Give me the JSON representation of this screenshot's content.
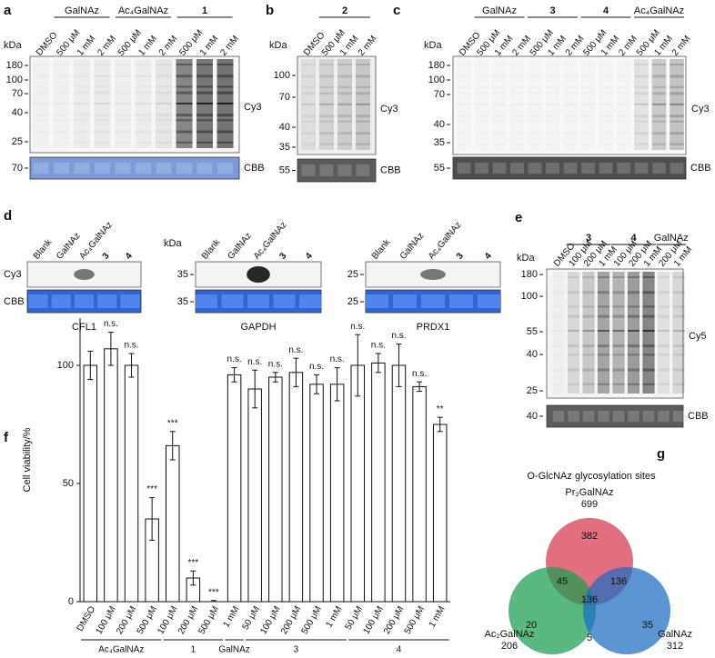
{
  "panels": {
    "a": {
      "label": "a",
      "groups": [
        "GalNAz",
        "Ac₄GalNAz",
        "1"
      ],
      "lanes": [
        "DMSO",
        "500 μM",
        "1 mM",
        "2 mM",
        "500 μM",
        "1 mM",
        "2 mM",
        "500 μM",
        "1 mM",
        "2 mM"
      ],
      "kda_label": "kDa",
      "markers": [
        180,
        100,
        70,
        40,
        25
      ],
      "signal": "Cy3",
      "loading_marker": 70,
      "loading": "CBB"
    },
    "b": {
      "label": "b",
      "groups": [
        "2"
      ],
      "lanes": [
        "DMSO",
        "500 μM",
        "1 mM",
        "2 mM"
      ],
      "kda_label": "kDa",
      "markers": [
        100,
        70,
        40,
        35
      ],
      "signal": "Cy3",
      "loading_marker": 55,
      "loading": "CBB"
    },
    "c": {
      "label": "c",
      "groups": [
        "GalNAz",
        "3",
        "4",
        "Ac₄GalNAz"
      ],
      "lanes": [
        "DMSO",
        "500 μM",
        "1 mM",
        "2 mM",
        "500 μM",
        "1 mM",
        "2 mM",
        "500 μM",
        "1 mM",
        "2 mM",
        "500 μM",
        "1 mM",
        "2 mM"
      ],
      "kda_label": "kDa",
      "markers": [
        180,
        100,
        70,
        40,
        35
      ],
      "signal": "Cy3",
      "loading_marker": 55,
      "loading": "CBB"
    },
    "d": {
      "label": "d",
      "rows": [
        "Cy3",
        "CBB"
      ],
      "blots": [
        {
          "lanes": [
            "Blank",
            "GalNAz",
            "Ac₄GalNAz",
            "3",
            "4"
          ],
          "protein": "CFL1"
        },
        {
          "lanes": [
            "Blank",
            "GalNAz",
            "Ac₄GalNAz",
            "3",
            "4"
          ],
          "protein": "GAPDH",
          "kda_label": "kDa",
          "markers": [
            35,
            35
          ]
        },
        {
          "lanes": [
            "Blank",
            "GalNAz",
            "Ac₄GalNAz",
            "3",
            "4"
          ],
          "protein": "PRDX1",
          "markers": [
            25,
            25
          ]
        }
      ]
    },
    "e": {
      "label": "e",
      "groups": [
        "3",
        "4",
        "GalNAz"
      ],
      "lanes": [
        "DMSO",
        "100 μM",
        "200 μM",
        "1 mM",
        "100 μM",
        "200 μM",
        "1 mM",
        "200 μM",
        "1 mM"
      ],
      "kda_label": "kDa",
      "markers": [
        180,
        100,
        55,
        40,
        25
      ],
      "signal": "Cy5",
      "loading_marker": 40,
      "loading": "CBB"
    }
  },
  "chart_data": {
    "type": "bar",
    "label": "f",
    "ylabel": "Cell viability/%",
    "categories": [
      "DMSO",
      "100 μM",
      "200 μM",
      "500 μM",
      "100 μM",
      "200 μM",
      "500 μM",
      "1 mM",
      "50 μM",
      "100 μM",
      "200 μM",
      "500 μM",
      "1 mM",
      "50 μM",
      "100 μM",
      "200 μM",
      "500 μM",
      "1 mM"
    ],
    "groups": [
      "Ac₄GalNAz",
      "1",
      "GalNAz",
      "3",
      "4"
    ],
    "values": [
      100,
      107,
      100,
      35,
      66,
      10,
      0,
      96,
      90,
      95,
      97,
      92,
      92,
      100,
      101,
      100,
      91,
      75
    ],
    "errors": [
      6,
      7,
      5,
      9,
      6,
      3,
      0.5,
      3,
      8,
      2,
      6,
      4,
      7,
      13,
      4,
      9,
      2,
      3
    ],
    "annotations": [
      null,
      "n.s.",
      "n.s.",
      "***",
      "***",
      "***",
      "***",
      "n.s.",
      "n.s.",
      "n.s.",
      "n.s.",
      "n.s.",
      "n.s.",
      "n.s.",
      "n.s.",
      "n.s.",
      "n.s.",
      "**"
    ],
    "color": "#ffffff",
    "ylim": [
      0,
      120
    ],
    "yticks": [
      0,
      50,
      100
    ]
  },
  "venn": {
    "label": "g",
    "title": "O-GlcNAz glycosylation sites",
    "sets": [
      {
        "name": "Pr₂GalNAz",
        "total": 699,
        "color": "#d6374e"
      },
      {
        "name": "Ac₂GalNAz",
        "total": 206,
        "color": "#1a9e4f"
      },
      {
        "name": "GalNAz",
        "total": 312,
        "color": "#1c6cc4"
      }
    ],
    "regions": [
      382,
      45,
      136,
      136,
      20,
      5,
      35
    ]
  }
}
